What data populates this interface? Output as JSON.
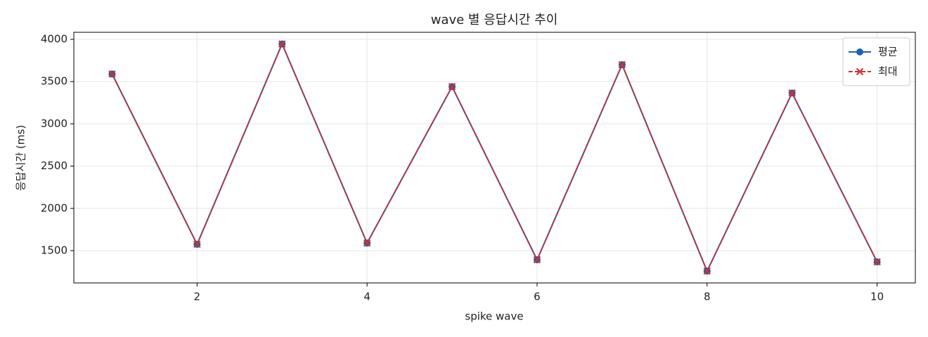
{
  "chart_data": {
    "type": "line",
    "title": "wave 별 응답시간 추이",
    "xlabel": "spike wave",
    "ylabel": "응답시간 (ms)",
    "x": [
      1,
      2,
      3,
      4,
      5,
      6,
      7,
      8,
      9,
      10
    ],
    "series": [
      {
        "name": "평균",
        "color": "#1f5fb4",
        "marker": "o",
        "dash": false,
        "values": [
          3590,
          1575,
          3945,
          1590,
          3440,
          1392,
          3700,
          1258,
          3365,
          1367
        ]
      },
      {
        "name": "최대",
        "color": "#d0302c",
        "marker": "x",
        "dash": true,
        "values": [
          3590,
          1575,
          3945,
          1590,
          3440,
          1392,
          3700,
          1258,
          3365,
          1367
        ]
      }
    ],
    "xlim": [
      0.55,
      10.45
    ],
    "ylim": [
      1118,
      4083
    ],
    "xticks": [
      2,
      4,
      6,
      8,
      10
    ],
    "yticks": [
      1500,
      2000,
      2500,
      3000,
      3500,
      4000
    ],
    "grid": true,
    "legend": "upper right"
  }
}
